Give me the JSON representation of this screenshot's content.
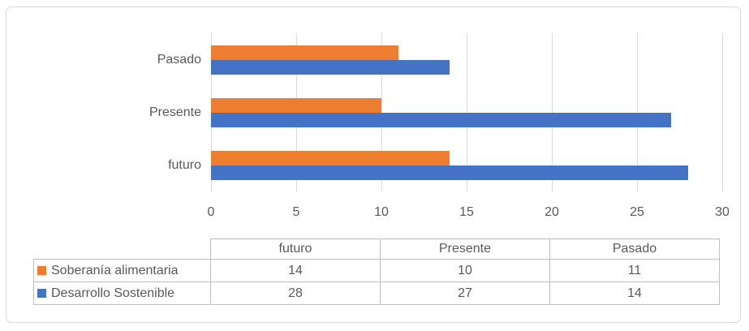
{
  "chart_data": {
    "type": "bar",
    "orientation": "horizontal",
    "title": "",
    "xlabel": "",
    "ylabel": "",
    "categories": [
      "Pasado",
      "Presente",
      "futuro"
    ],
    "series": [
      {
        "name": "Soberanía alimentaria",
        "color": "#ED7D31",
        "values": [
          11,
          10,
          14
        ]
      },
      {
        "name": "Desarrollo Sostenible",
        "color": "#4472C4",
        "values": [
          14,
          27,
          28
        ]
      }
    ],
    "x_axis": {
      "min": 0,
      "max": 30,
      "ticks": [
        0,
        5,
        10,
        15,
        20,
        25,
        30
      ]
    },
    "grid": "vertical-gridlines-on",
    "legend_position": "data-table-below-chart"
  },
  "table": {
    "columns": [
      "futuro",
      "Presente",
      "Pasado"
    ],
    "rows": [
      {
        "label": "Soberanía alimentaria",
        "swatch_color": "#ED7D31",
        "values": [
          14,
          10,
          11
        ]
      },
      {
        "label": "Desarrollo Sostenible",
        "swatch_color": "#4472C4",
        "values": [
          28,
          27,
          14
        ]
      }
    ]
  },
  "colors": {
    "series_orange": "#ED7D31",
    "series_blue": "#4472C4",
    "gridline": "#D9D9D9",
    "frame_border": "#D9D9D9",
    "table_border": "#BFBFBF",
    "text": "#595959",
    "background": "#FFFFFF"
  }
}
